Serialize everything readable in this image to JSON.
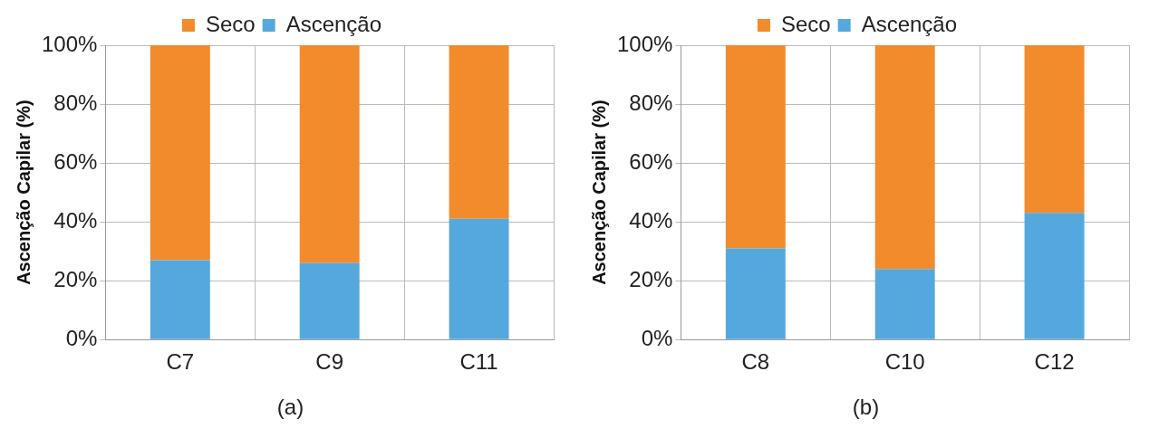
{
  "chart_data": [
    {
      "type": "bar",
      "stacked": true,
      "ylabel": "Ascenção Capilar (%)",
      "categories": [
        "C7",
        "C9",
        "C11"
      ],
      "series": [
        {
          "name": "Ascenção",
          "color": "#55a8dd",
          "values": [
            27,
            26,
            41
          ]
        },
        {
          "name": "Seco",
          "color": "#f28b2c",
          "values": [
            73,
            74,
            59
          ]
        }
      ],
      "ylim": [
        0,
        100
      ],
      "yticks": [
        {
          "value": 0,
          "label": "0%"
        },
        {
          "value": 20,
          "label": "20%"
        },
        {
          "value": 40,
          "label": "40%"
        },
        {
          "value": 60,
          "label": "60%"
        },
        {
          "value": 80,
          "label": "80%"
        },
        {
          "value": 100,
          "label": "100%"
        }
      ],
      "grid": true,
      "legend": "top",
      "annotations": [
        "(a)"
      ]
    },
    {
      "type": "bar",
      "stacked": true,
      "ylabel": "Ascenção Capilar (%)",
      "categories": [
        "C8",
        "C10",
        "C12"
      ],
      "series": [
        {
          "name": "Ascenção",
          "color": "#55a8dd",
          "values": [
            31,
            24,
            43
          ]
        },
        {
          "name": "Seco",
          "color": "#f28b2c",
          "values": [
            69,
            76,
            57
          ]
        }
      ],
      "ylim": [
        0,
        100
      ],
      "yticks": [
        {
          "value": 0,
          "label": "0%"
        },
        {
          "value": 20,
          "label": "20%"
        },
        {
          "value": 40,
          "label": "40%"
        },
        {
          "value": 60,
          "label": "60%"
        },
        {
          "value": 80,
          "label": "80%"
        },
        {
          "value": 100,
          "label": "100%"
        }
      ],
      "grid": true,
      "legend": "top",
      "annotations": [
        "(b)"
      ]
    }
  ]
}
